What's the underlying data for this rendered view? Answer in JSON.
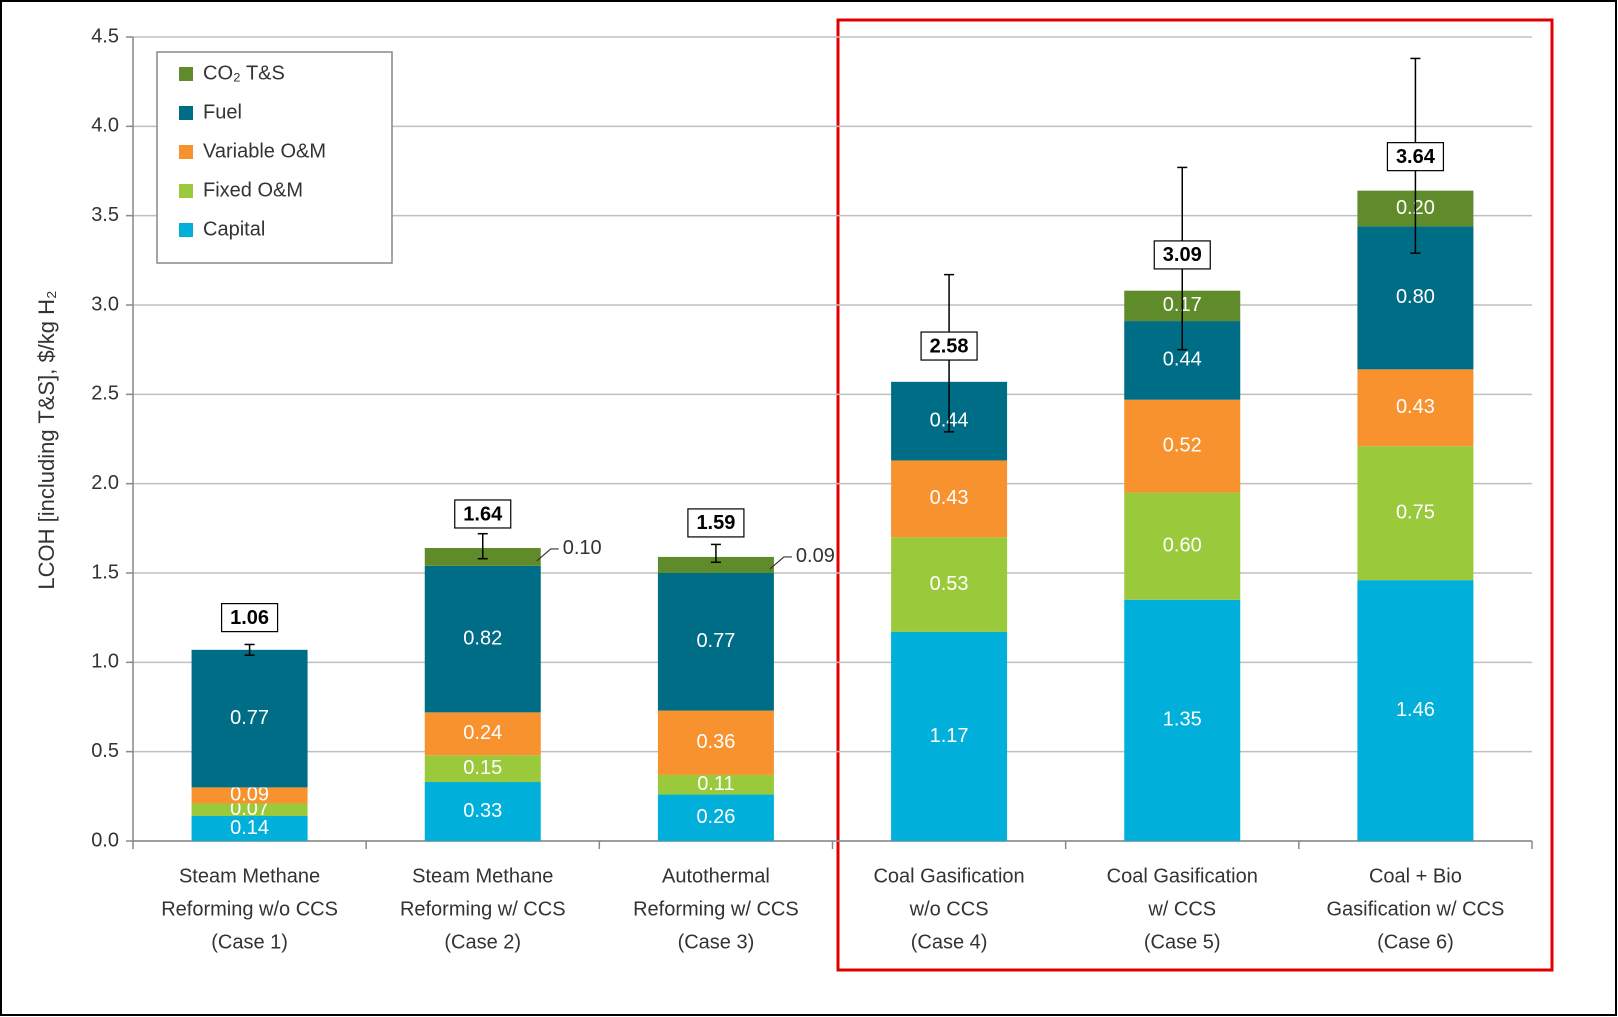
{
  "chart_data": {
    "type": "stacked_bar",
    "y_label": "LCOH [including T&S], $/kg H₂",
    "categories": [
      [
        "Steam Methane",
        "Reforming w/o CCS",
        "(Case 1)"
      ],
      [
        "Steam Methane",
        "Reforming w/ CCS",
        "(Case 2)"
      ],
      [
        "Autothermal",
        "Reforming w/ CCS",
        "(Case 3)"
      ],
      [
        "Coal Gasification",
        "w/o CCS",
        "(Case 4)"
      ],
      [
        "Coal Gasification",
        "w/ CCS",
        "(Case 5)"
      ],
      [
        "Coal + Bio",
        "Gasification w/ CCS",
        "(Case 6)"
      ]
    ],
    "series": [
      {
        "name": "Capital",
        "color": "#00b0da",
        "values": [
          0.14,
          0.33,
          0.26,
          1.17,
          1.35,
          1.46
        ],
        "value_labels": [
          "0.14",
          "0.33",
          "0.26",
          "1.17",
          "1.35",
          "1.46"
        ]
      },
      {
        "name": "Fixed O&M",
        "color": "#9bc93c",
        "values": [
          0.07,
          0.15,
          0.11,
          0.53,
          0.6,
          0.75
        ],
        "value_labels": [
          "0.07",
          "0.15",
          "0.11",
          "0.53",
          "0.60",
          "0.75"
        ]
      },
      {
        "name": "Variable O&M",
        "color": "#f7922f",
        "values": [
          0.09,
          0.24,
          0.36,
          0.43,
          0.52,
          0.43
        ],
        "value_labels": [
          "0.09",
          "0.24",
          "0.36",
          "0.43",
          "0.52",
          "0.43"
        ]
      },
      {
        "name": "Fuel",
        "color": "#006d86",
        "values": [
          0.77,
          0.82,
          0.77,
          0.44,
          0.44,
          0.8
        ],
        "value_labels": [
          "0.77",
          "0.82",
          "0.77",
          "0.44",
          "0.44",
          "0.80"
        ]
      },
      {
        "name": "CO₂ T&S",
        "color": "#5f8b2a",
        "values": [
          null,
          0.1,
          0.09,
          null,
          0.17,
          0.2
        ],
        "value_labels": [
          null,
          "0.10",
          "0.09",
          null,
          "0.17",
          "0.20"
        ]
      }
    ],
    "totals": [
      1.06,
      1.64,
      1.59,
      2.58,
      3.09,
      3.64
    ],
    "error_low": [
      1.04,
      1.58,
      1.56,
      2.29,
      2.75,
      3.29
    ],
    "error_high": [
      1.1,
      1.72,
      1.66,
      3.17,
      3.77,
      4.38
    ],
    "ylim": [
      0,
      4.5
    ],
    "yticks": [
      {
        "value": 0,
        "label": "0.0"
      },
      {
        "value": 0.5,
        "label": "0.5"
      },
      {
        "value": 1,
        "label": "1.0"
      },
      {
        "value": 1.5,
        "label": "1.5"
      },
      {
        "value": 2,
        "label": "2.0"
      },
      {
        "value": 2.5,
        "label": "2.5"
      },
      {
        "value": 3,
        "label": "3.0"
      },
      {
        "value": 3.5,
        "label": "3.5"
      },
      {
        "value": 4,
        "label": "4.0"
      },
      {
        "value": 4.5,
        "label": "4.5"
      }
    ],
    "grid": true,
    "legend": "upper left"
  }
}
